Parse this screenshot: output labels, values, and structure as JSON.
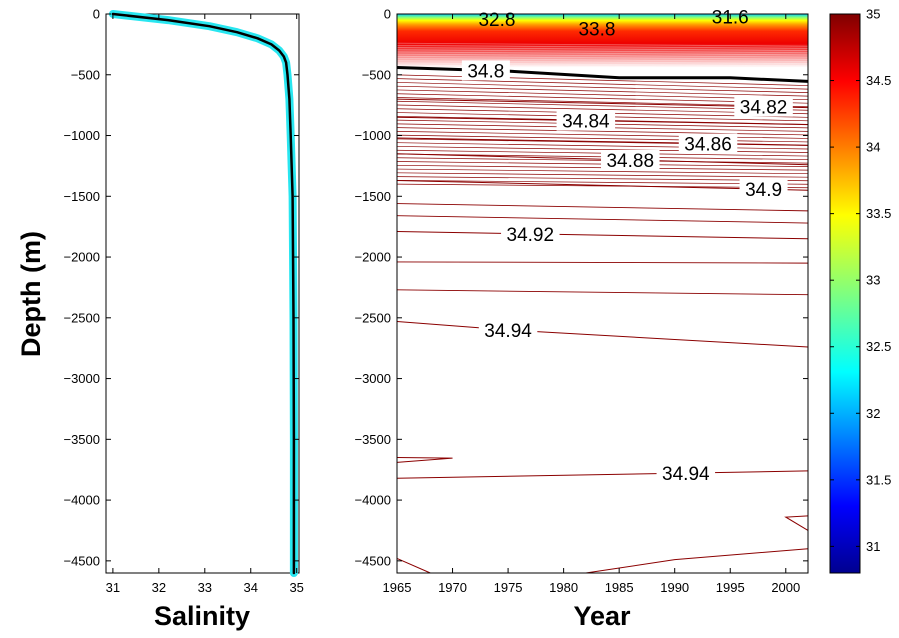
{
  "chart_data": [
    {
      "type": "line",
      "panel": "salinity-profile",
      "xlabel": "Salinity",
      "ylabel": "Depth (m)",
      "xlim": [
        30.85,
        35.05
      ],
      "ylim": [
        -4600,
        0
      ],
      "xticks": [
        31,
        32,
        33,
        34,
        35
      ],
      "yticks": [
        0,
        -500,
        -1000,
        -1500,
        -2000,
        -2500,
        -3000,
        -3500,
        -4000,
        -4500
      ],
      "grid": false,
      "series": [
        {
          "style": "envelope-cyan",
          "depth": [
            0,
            -50,
            -100,
            -150,
            -200,
            -250,
            -300,
            -350,
            -400,
            -500,
            -700,
            -1000,
            -1500,
            -2500,
            -3500,
            -4500,
            -4600
          ],
          "salinity": [
            31.0,
            32.2,
            33.1,
            33.7,
            34.15,
            34.45,
            34.62,
            34.72,
            34.77,
            34.8,
            34.84,
            34.87,
            34.91,
            34.93,
            34.94,
            34.94,
            34.94
          ]
        },
        {
          "style": "mean-black",
          "depth": [
            0,
            -50,
            -100,
            -150,
            -200,
            -250,
            -300,
            -350,
            -400,
            -500,
            -700,
            -1000,
            -1500,
            -2500,
            -3500,
            -4500,
            -4600
          ],
          "salinity": [
            31.0,
            32.2,
            33.1,
            33.7,
            34.15,
            34.45,
            34.62,
            34.72,
            34.77,
            34.8,
            34.84,
            34.87,
            34.91,
            34.93,
            34.94,
            34.94,
            34.94
          ]
        }
      ]
    },
    {
      "type": "contour",
      "panel": "salinity-time-depth",
      "xlabel": "Year",
      "xlim": [
        1965,
        2002
      ],
      "ylim": [
        -4600,
        0
      ],
      "xticks": [
        1965,
        1970,
        1975,
        1980,
        1985,
        1990,
        1995,
        2000
      ],
      "yticks": [
        0,
        -500,
        -1000,
        -1500,
        -2000,
        -2500,
        -3000,
        -3500,
        -4000,
        -4500
      ],
      "colormap": "jet",
      "colorbar": {
        "range": [
          30.8,
          35
        ],
        "ticks": [
          31,
          31.5,
          32,
          32.5,
          33,
          33.5,
          34,
          34.5,
          35
        ]
      },
      "surface_layer_depth": [
        0,
        -60,
        -130,
        -200,
        -300,
        -380,
        -440
      ],
      "surface_layer_salinity": [
        31.6,
        32.4,
        33.2,
        33.8,
        34.5,
        34.7,
        34.8
      ],
      "contours": [
        {
          "level": 34.8,
          "thick": true,
          "years": [
            1965,
            1975,
            1985,
            1995,
            2002
          ],
          "depth": [
            -440,
            -470,
            -525,
            -525,
            -555
          ],
          "label": {
            "text": "34.8",
            "year": 1973
          }
        },
        {
          "level": 34.82,
          "years": [
            1965,
            2002
          ],
          "depth": [
            -700,
            -770
          ],
          "label": {
            "text": "34.82",
            "year": 1998
          }
        },
        {
          "level": 34.84,
          "years": [
            1965,
            2002
          ],
          "depth": [
            -850,
            -910
          ],
          "label": {
            "text": "34.84",
            "year": 1982
          }
        },
        {
          "level": 34.86,
          "years": [
            1965,
            2002
          ],
          "depth": [
            -1020,
            -1080
          ],
          "label": {
            "text": "34.86",
            "year": 1993
          }
        },
        {
          "level": 34.88,
          "years": [
            1965,
            2002
          ],
          "depth": [
            -1150,
            -1240
          ],
          "label": {
            "text": "34.88",
            "year": 1986
          }
        },
        {
          "level": 34.9,
          "years": [
            1965,
            2002
          ],
          "depth": [
            -1370,
            -1450
          ],
          "label": {
            "text": "34.9",
            "year": 1998
          }
        },
        {
          "level": 34.92,
          "years": [
            1965,
            2002
          ],
          "depth": [
            -1790,
            -1850
          ],
          "label": {
            "text": "34.92",
            "year": 1977
          }
        },
        {
          "level": 34.94,
          "years": [
            1965,
            1975,
            2002
          ],
          "depth": [
            -2530,
            -2600,
            -2740
          ],
          "label": {
            "text": "34.94",
            "year": 1975
          }
        },
        {
          "level": 34.94,
          "years": [
            1965,
            2002
          ],
          "depth": [
            -3820,
            -3760
          ],
          "label": {
            "text": "34.94",
            "year": 1991
          }
        }
      ],
      "surface_labels": [
        {
          "text": "32.8",
          "year": 1974,
          "depth": -40
        },
        {
          "text": "33.8",
          "year": 1983,
          "depth": -120
        },
        {
          "text": "31.6",
          "year": 1995,
          "depth": -20
        }
      ]
    }
  ]
}
